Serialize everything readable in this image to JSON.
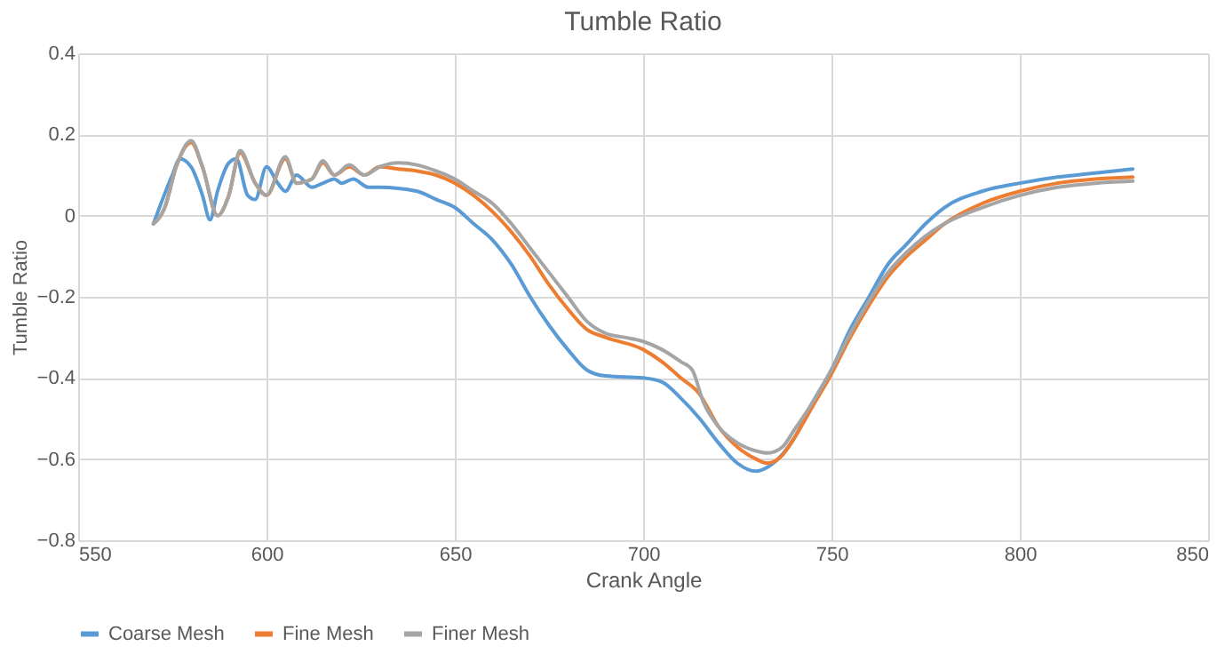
{
  "chart_data": {
    "type": "line",
    "title": "Tumble Ratio",
    "xlabel": "Crank Angle",
    "ylabel": "Tumble Ratio",
    "xlim": [
      550,
      850
    ],
    "xticks": [
      550,
      600,
      650,
      700,
      750,
      800,
      850
    ],
    "ylim": [
      -0.8,
      0.4
    ],
    "yticks": [
      -0.8,
      -0.6,
      -0.4,
      -0.2,
      0,
      0.2,
      0.4
    ],
    "grid": true,
    "legend": "bottom",
    "marker": "none",
    "line_style": "solid",
    "series": [
      {
        "name": "Coarse Mesh",
        "color": "#5b9bd5",
        "x": [
          570,
          575,
          577,
          580,
          583,
          585,
          587,
          590,
          592,
          595,
          597,
          600,
          603,
          605,
          608,
          612,
          615,
          618,
          620,
          623,
          627,
          630,
          640,
          645,
          650,
          655,
          660,
          665,
          670,
          675,
          680,
          685,
          690,
          700,
          705,
          710,
          715,
          720,
          725,
          730,
          733,
          740,
          745,
          750,
          755,
          760,
          765,
          770,
          775,
          780,
          790,
          800,
          810,
          820,
          830
        ],
        "values": [
          -0.02,
          0.1,
          0.14,
          0.12,
          0.05,
          -0.01,
          0.06,
          0.13,
          0.14,
          0.05,
          0.04,
          0.12,
          0.08,
          0.06,
          0.1,
          0.07,
          0.08,
          0.09,
          0.08,
          0.09,
          0.07,
          0.07,
          0.06,
          0.04,
          0.02,
          -0.02,
          -0.06,
          -0.12,
          -0.2,
          -0.27,
          -0.33,
          -0.38,
          -0.395,
          -0.4,
          -0.41,
          -0.45,
          -0.5,
          -0.56,
          -0.61,
          -0.63,
          -0.62,
          -0.55,
          -0.46,
          -0.38,
          -0.28,
          -0.2,
          -0.12,
          -0.07,
          -0.02,
          0.02,
          0.06,
          0.08,
          0.095,
          0.105,
          0.115
        ]
      },
      {
        "name": "Fine Mesh",
        "color": "#ed7d31",
        "x": [
          570,
          573,
          576,
          580,
          583,
          587,
          590,
          593,
          597,
          600,
          605,
          608,
          612,
          615,
          618,
          622,
          626,
          630,
          635,
          640,
          645,
          650,
          655,
          660,
          665,
          670,
          675,
          680,
          685,
          690,
          700,
          705,
          710,
          715,
          720,
          725,
          730,
          733,
          737,
          740,
          745,
          750,
          755,
          760,
          765,
          770,
          775,
          780,
          790,
          800,
          810,
          820,
          830
        ],
        "values": [
          -0.02,
          0.02,
          0.12,
          0.18,
          0.12,
          0.0,
          0.05,
          0.155,
          0.08,
          0.05,
          0.14,
          0.08,
          0.09,
          0.13,
          0.1,
          0.12,
          0.1,
          0.12,
          0.115,
          0.11,
          0.1,
          0.08,
          0.05,
          0.01,
          -0.04,
          -0.1,
          -0.17,
          -0.23,
          -0.28,
          -0.3,
          -0.33,
          -0.36,
          -0.4,
          -0.44,
          -0.52,
          -0.57,
          -0.6,
          -0.61,
          -0.59,
          -0.55,
          -0.47,
          -0.39,
          -0.3,
          -0.22,
          -0.15,
          -0.1,
          -0.06,
          -0.02,
          0.03,
          0.06,
          0.08,
          0.09,
          0.095
        ]
      },
      {
        "name": "Finer Mesh",
        "color": "#a5a5a5",
        "x": [
          570,
          573,
          576,
          580,
          583,
          587,
          590,
          593,
          597,
          600,
          605,
          608,
          612,
          615,
          618,
          622,
          626,
          630,
          635,
          640,
          645,
          650,
          655,
          660,
          665,
          670,
          675,
          680,
          685,
          690,
          695,
          700,
          705,
          710,
          713,
          716,
          720,
          725,
          730,
          733,
          737,
          740,
          745,
          750,
          755,
          760,
          765,
          770,
          775,
          780,
          790,
          800,
          810,
          820,
          830
        ],
        "values": [
          -0.02,
          0.02,
          0.12,
          0.185,
          0.12,
          0.0,
          0.05,
          0.16,
          0.08,
          0.05,
          0.145,
          0.08,
          0.09,
          0.135,
          0.1,
          0.125,
          0.1,
          0.12,
          0.13,
          0.125,
          0.11,
          0.09,
          0.06,
          0.03,
          -0.02,
          -0.08,
          -0.14,
          -0.2,
          -0.26,
          -0.29,
          -0.3,
          -0.31,
          -0.33,
          -0.36,
          -0.38,
          -0.46,
          -0.52,
          -0.56,
          -0.58,
          -0.585,
          -0.57,
          -0.53,
          -0.46,
          -0.38,
          -0.29,
          -0.21,
          -0.14,
          -0.09,
          -0.05,
          -0.02,
          0.02,
          0.05,
          0.07,
          0.08,
          0.085
        ]
      }
    ]
  }
}
